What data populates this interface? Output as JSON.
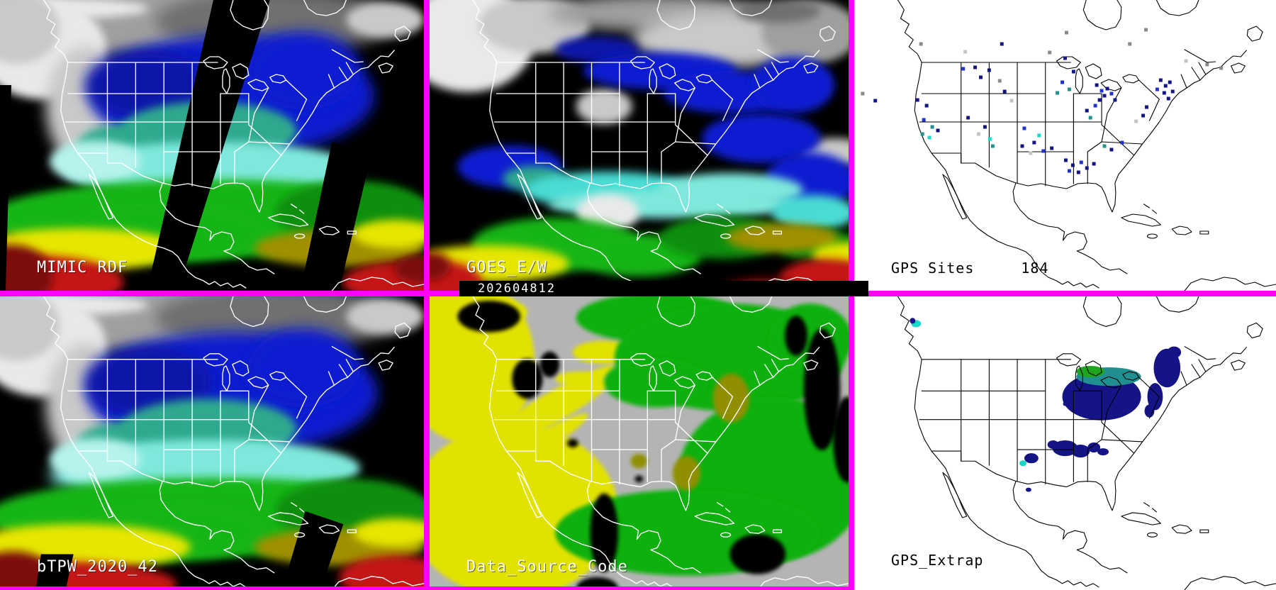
{
  "panels": {
    "mimic_rdf": {
      "label": "MIMIC RDF"
    },
    "goes_ew": {
      "label": "GOES_E/W",
      "timestamp": "202604812"
    },
    "gps_sites": {
      "label": "GPS Sites",
      "count": "184",
      "dots": [
        [
          95,
          62,
          "gray"
        ],
        [
          210,
          62,
          "navy"
        ],
        [
          158,
          73,
          "lightgray"
        ],
        [
          278,
          74,
          "gray"
        ],
        [
          300,
          82,
          "navy"
        ],
        [
          415,
          42,
          "gray"
        ],
        [
          12,
          132,
          "gray"
        ],
        [
          30,
          142,
          "navy"
        ],
        [
          155,
          97,
          "blue"
        ],
        [
          172,
          95,
          "navy"
        ],
        [
          180,
          109,
          "navy"
        ],
        [
          192,
          99,
          "navy"
        ],
        [
          207,
          114,
          "gray"
        ],
        [
          214,
          129,
          "navy"
        ],
        [
          224,
          142,
          "lightgray"
        ],
        [
          90,
          141,
          "navy"
        ],
        [
          103,
          149,
          "navy"
        ],
        [
          99,
          169,
          "blue"
        ],
        [
          111,
          179,
          "teal"
        ],
        [
          119,
          184,
          "navy"
        ],
        [
          97,
          189,
          "teal"
        ],
        [
          107,
          194,
          "cyan"
        ],
        [
          162,
          166,
          "navy"
        ],
        [
          186,
          179,
          "navy"
        ],
        [
          193,
          196,
          "cyan"
        ],
        [
          197,
          206,
          "teal"
        ],
        [
          177,
          189,
          "lightgray"
        ],
        [
          242,
          181,
          "blue"
        ],
        [
          263,
          191,
          "cyan"
        ],
        [
          256,
          201,
          "navy"
        ],
        [
          239,
          206,
          "navy"
        ],
        [
          269,
          213,
          "blue"
        ],
        [
          281,
          209,
          "navy"
        ],
        [
          251,
          216,
          "lightgray"
        ],
        [
          296,
          116,
          "blue"
        ],
        [
          306,
          126,
          "teal"
        ],
        [
          289,
          131,
          "teal"
        ],
        [
          312,
          101,
          "navy"
        ],
        [
          345,
          120,
          "navy"
        ],
        [
          352,
          128,
          "blue"
        ],
        [
          360,
          125,
          "navy"
        ],
        [
          356,
          135,
          "navy"
        ],
        [
          366,
          132,
          "blue"
        ],
        [
          349,
          141,
          "navy"
        ],
        [
          371,
          141,
          "navy"
        ],
        [
          343,
          149,
          "blue"
        ],
        [
          331,
          156,
          "navy"
        ],
        [
          336,
          166,
          "teal"
        ],
        [
          301,
          226,
          "navy"
        ],
        [
          311,
          233,
          "navy"
        ],
        [
          323,
          229,
          "blue"
        ],
        [
          331,
          237,
          "navy"
        ],
        [
          319,
          243,
          "navy"
        ],
        [
          306,
          241,
          "blue"
        ],
        [
          341,
          231,
          "navy"
        ],
        [
          356,
          206,
          "teal"
        ],
        [
          366,
          211,
          "navy"
        ],
        [
          381,
          201,
          "blue"
        ],
        [
          436,
          113,
          "navy"
        ],
        [
          443,
          121,
          "navy"
        ],
        [
          449,
          116,
          "navy"
        ],
        [
          441,
          131,
          "navy"
        ],
        [
          453,
          129,
          "navy"
        ],
        [
          447,
          139,
          "navy"
        ],
        [
          431,
          126,
          "blue"
        ],
        [
          416,
          151,
          "navy"
        ],
        [
          411,
          163,
          "navy"
        ],
        [
          401,
          171,
          "lightgray"
        ],
        [
          302,
          46,
          "gray"
        ],
        [
          392,
          62,
          "gray"
        ],
        [
          472,
          86,
          "lightgray"
        ],
        [
          502,
          91,
          "gray"
        ],
        [
          522,
          96,
          "gray"
        ]
      ]
    },
    "btpw": {
      "label": "bTPW_2020_42"
    },
    "data_source_code": {
      "label": "Data_Source_Code"
    },
    "gps_extrap": {
      "label": "GPS_Extrap",
      "blobs": [
        [
          352,
          140,
          56,
          33,
          "navy"
        ],
        [
          362,
          112,
          46,
          13,
          "teal"
        ],
        [
          336,
          105,
          20,
          8,
          "green"
        ],
        [
          445,
          100,
          19,
          27,
          "navy"
        ],
        [
          455,
          78,
          10,
          8,
          "navy"
        ],
        [
          428,
          140,
          11,
          19,
          "navy"
        ],
        [
          420,
          160,
          7,
          9,
          "navy"
        ],
        [
          368,
          165,
          5,
          4,
          "navy"
        ],
        [
          300,
          150,
          3,
          3,
          "navy"
        ],
        [
          300,
          212,
          18,
          11,
          "navy"
        ],
        [
          322,
          216,
          13,
          9,
          "navy"
        ],
        [
          341,
          211,
          9,
          7,
          "navy"
        ],
        [
          283,
          207,
          8,
          6,
          "navy"
        ],
        [
          354,
          217,
          8,
          5,
          "navy"
        ],
        [
          252,
          226,
          10,
          7,
          "navy"
        ],
        [
          240,
          233,
          5,
          4,
          "cyan"
        ],
        [
          248,
          270,
          4,
          3,
          "navy"
        ],
        [
          88,
          38,
          7,
          5,
          "cyan"
        ],
        [
          83,
          34,
          4,
          4,
          "navy"
        ]
      ]
    }
  },
  "colors": {
    "border_magenta": "#ff00ff",
    "panel_dark_bg": "#000000",
    "panel_light_bg": "#ffffff",
    "outline_on_dark": "#ffffff",
    "outline_on_light": "#000000",
    "tpw_blue": "#0b1fd0",
    "tpw_teal": "#2fa98d",
    "tpw_cyan": "#7fe8dc",
    "tpw_green": "#17b517",
    "tpw_yellow": "#e6e600",
    "tpw_olive": "#a08f00",
    "tpw_red": "#c41414",
    "tpw_darkred": "#7d0f0f",
    "cloud_gray": "#b8b8b8",
    "dsc_gray": "#b4b4b4",
    "dsc_yellow": "#e2e200",
    "dsc_green": "#0ab00a",
    "dsc_olive": "#8f8f00",
    "gps_navy": "#141487",
    "gps_blue": "#2233cc",
    "gps_teal": "#1f8f8f",
    "gps_cyan": "#19d8c8",
    "gps_green": "#1ea41e",
    "gps_gray": "#8a8a8a",
    "gps_lightgray": "#c4c4c4"
  }
}
